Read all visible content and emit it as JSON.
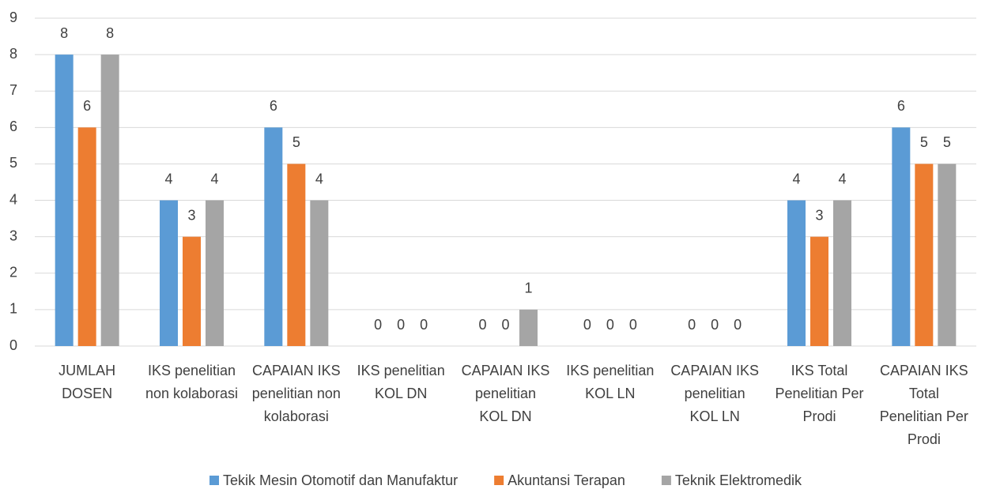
{
  "chart_data": {
    "type": "bar",
    "categories": [
      "JUMLAH DOSEN",
      "IKS penelitian non kolaborasi",
      "CAPAIAN IKS penelitian non kolaborasi",
      "IKS penelitian KOL DN",
      "CAPAIAN IKS penelitian KOL DN",
      "IKS penelitian KOL LN",
      "CAPAIAN IKS penelitian KOL LN",
      "IKS Total Penelitian Per Prodi",
      "CAPAIAN IKS Total Penelitian Per Prodi"
    ],
    "series": [
      {
        "name": "Tekik Mesin Otomotif dan Manufaktur",
        "color": "#5b9bd5",
        "values": [
          8,
          4,
          6,
          0,
          0,
          0,
          0,
          4,
          6
        ]
      },
      {
        "name": "Akuntansi Terapan",
        "color": "#ed7d31",
        "values": [
          6,
          3,
          5,
          0,
          0,
          0,
          0,
          3,
          5
        ]
      },
      {
        "name": "Teknik Elektromedik",
        "color": "#a5a5a5",
        "values": [
          8,
          4,
          4,
          0,
          1,
          0,
          0,
          4,
          5
        ]
      }
    ],
    "ylim": [
      0,
      9
    ],
    "yticks": [
      0,
      1,
      2,
      3,
      4,
      5,
      6,
      7,
      8,
      9
    ],
    "grid": true,
    "legend": "bottom"
  }
}
